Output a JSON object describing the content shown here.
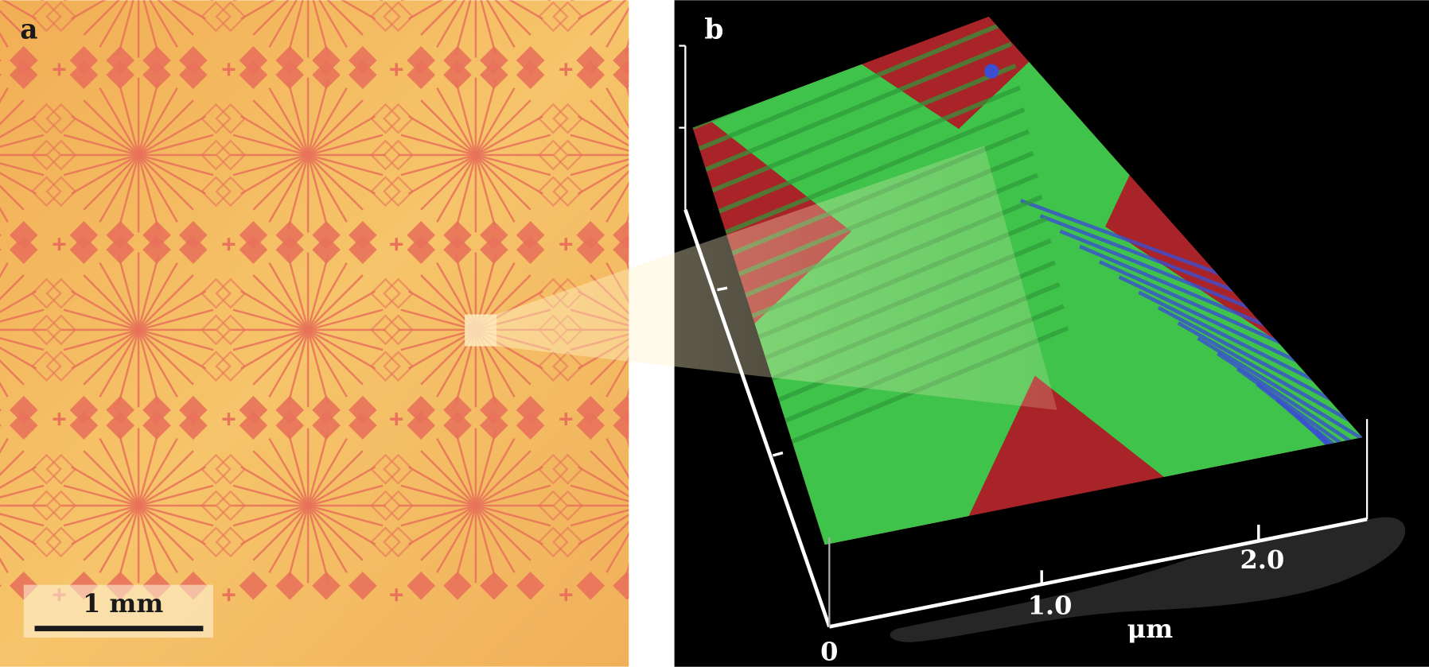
{
  "panel_a": {
    "label": "a",
    "scale_bar": "1 mm",
    "colors": {
      "background": "#f3b55a",
      "pattern": "#e8725a"
    }
  },
  "panel_b": {
    "label": "b",
    "axis_ticks": [
      "0",
      "1.0",
      "2.0"
    ],
    "axis_unit": "μm",
    "colors": {
      "background": "#000000",
      "surface": "#3fc34a",
      "substrate": "#b8262b",
      "edge": "#3b4fd0"
    }
  }
}
